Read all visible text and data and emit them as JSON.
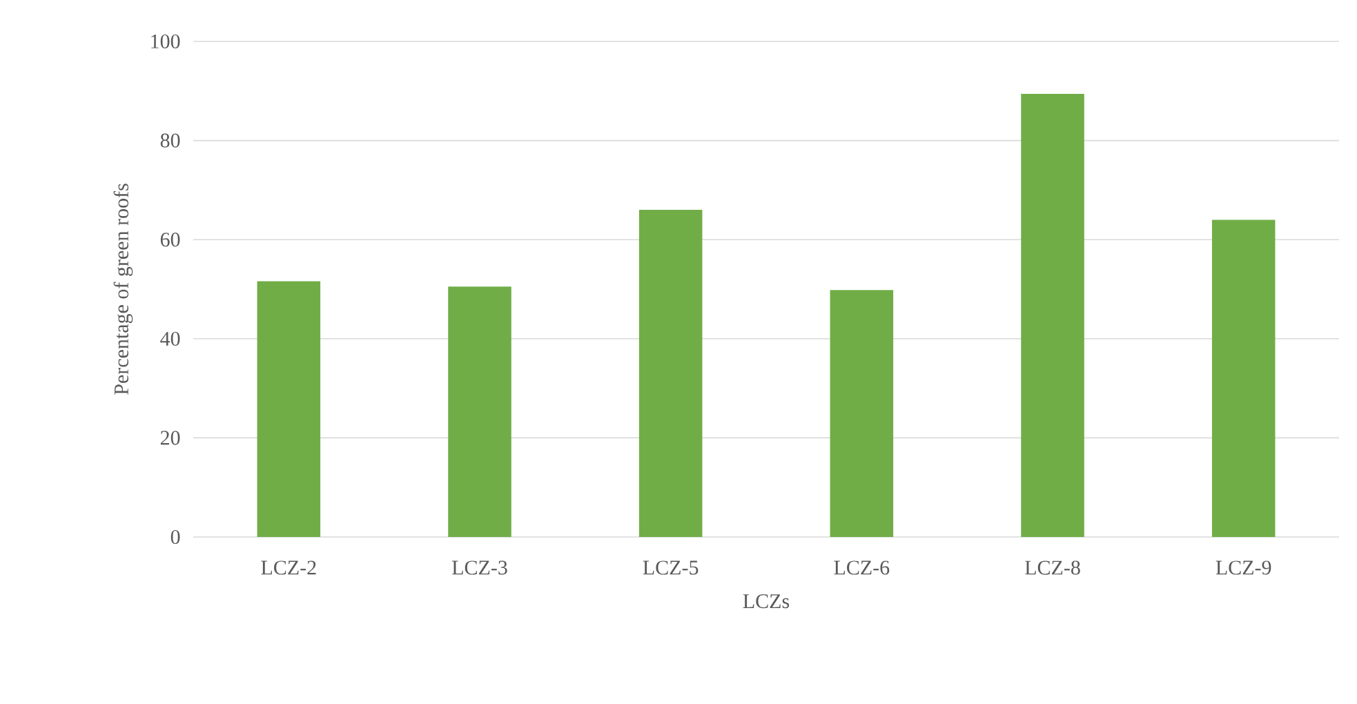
{
  "chart_data": {
    "type": "bar",
    "xlabel": "LCZs",
    "ylabel": "Percentage of green roofs",
    "categories": [
      "LCZ-2",
      "LCZ-3",
      "LCZ-5",
      "LCZ-6",
      "LCZ-8",
      "LCZ-9"
    ],
    "values": [
      51.4,
      50.3,
      65.8,
      49.6,
      89.2,
      63.8
    ],
    "color": "#70ad47",
    "ylim": [
      0,
      100
    ],
    "yticks": [
      0,
      20,
      40,
      60,
      80,
      100
    ],
    "grid": "y"
  }
}
